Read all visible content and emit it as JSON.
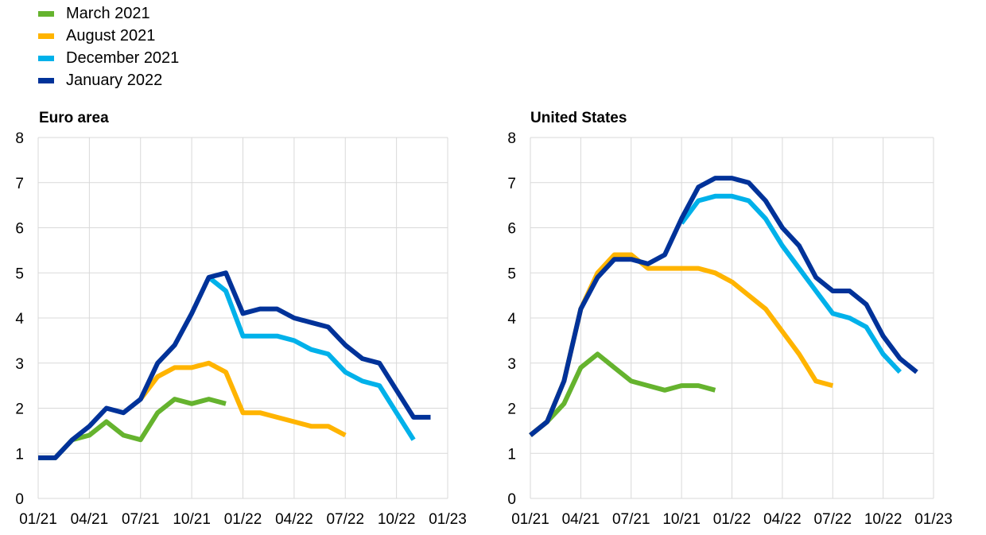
{
  "legend": {
    "items": [
      {
        "label": "March 2021",
        "color": "#65b32e"
      },
      {
        "label": "August 2021",
        "color": "#ffb400"
      },
      {
        "label": "December 2021",
        "color": "#00b1ea"
      },
      {
        "label": "January 2022",
        "color": "#003299"
      }
    ]
  },
  "chart_data": [
    {
      "type": "line",
      "title": "Euro area",
      "xlabel": "",
      "ylabel": "",
      "ylim": [
        0,
        8
      ],
      "yticks": [
        "0",
        "1",
        "2",
        "3",
        "4",
        "5",
        "6",
        "7",
        "8"
      ],
      "xlim": [
        "01/21",
        "01/23"
      ],
      "xticks": [
        "01/21",
        "04/21",
        "07/21",
        "10/21",
        "01/22",
        "04/22",
        "07/22",
        "10/22",
        "01/23"
      ],
      "grid": true,
      "series": [
        {
          "name": "March 2021",
          "color": "#65b32e",
          "x": [
            "01/21",
            "02/21",
            "03/21",
            "04/21",
            "05/21",
            "06/21",
            "07/21",
            "08/21",
            "09/21",
            "10/21",
            "11/21",
            "12/21"
          ],
          "values": [
            0.9,
            0.9,
            1.3,
            1.4,
            1.7,
            1.4,
            1.3,
            1.9,
            2.2,
            2.1,
            2.2,
            2.1
          ]
        },
        {
          "name": "August 2021",
          "color": "#ffb400",
          "x": [
            "07/21",
            "08/21",
            "09/21",
            "10/21",
            "11/21",
            "12/21",
            "01/22",
            "02/22",
            "03/22",
            "04/22",
            "05/22",
            "06/22",
            "07/22"
          ],
          "values": [
            2.2,
            2.7,
            2.9,
            2.9,
            3.0,
            2.8,
            1.9,
            1.9,
            1.8,
            1.7,
            1.6,
            1.6,
            1.4
          ]
        },
        {
          "name": "December 2021",
          "color": "#00b1ea",
          "x": [
            "11/21",
            "12/21",
            "01/22",
            "02/22",
            "03/22",
            "04/22",
            "05/22",
            "06/22",
            "07/22",
            "08/22",
            "09/22",
            "10/22",
            "11/22"
          ],
          "values": [
            4.9,
            4.6,
            3.6,
            3.6,
            3.6,
            3.5,
            3.3,
            3.2,
            2.8,
            2.6,
            2.5,
            1.9,
            1.3
          ]
        },
        {
          "name": "January 2022",
          "color": "#003299",
          "x": [
            "01/21",
            "02/21",
            "03/21",
            "04/21",
            "05/21",
            "06/21",
            "07/21",
            "08/21",
            "09/21",
            "10/21",
            "11/21",
            "12/21",
            "01/22",
            "02/22",
            "03/22",
            "04/22",
            "05/22",
            "06/22",
            "07/22",
            "08/22",
            "09/22",
            "10/22",
            "11/22",
            "12/22"
          ],
          "values": [
            0.9,
            0.9,
            1.3,
            1.6,
            2.0,
            1.9,
            2.2,
            3.0,
            3.4,
            4.1,
            4.9,
            5.0,
            4.1,
            4.2,
            4.2,
            4.0,
            3.9,
            3.8,
            3.4,
            3.1,
            3.0,
            2.4,
            1.8,
            1.8
          ]
        }
      ]
    },
    {
      "type": "line",
      "title": "United States",
      "xlabel": "",
      "ylabel": "",
      "ylim": [
        0,
        8
      ],
      "yticks": [
        "0",
        "1",
        "2",
        "3",
        "4",
        "5",
        "6",
        "7",
        "8"
      ],
      "xlim": [
        "01/21",
        "01/23"
      ],
      "xticks": [
        "01/21",
        "04/21",
        "07/21",
        "10/21",
        "01/22",
        "04/22",
        "07/22",
        "10/22",
        "01/23"
      ],
      "grid": true,
      "series": [
        {
          "name": "March 2021",
          "color": "#65b32e",
          "x": [
            "01/21",
            "02/21",
            "03/21",
            "04/21",
            "05/21",
            "06/21",
            "07/21",
            "08/21",
            "09/21",
            "10/21",
            "11/21",
            "12/21"
          ],
          "values": [
            1.4,
            1.7,
            2.1,
            2.9,
            3.2,
            2.9,
            2.6,
            2.5,
            2.4,
            2.5,
            2.5,
            2.4
          ]
        },
        {
          "name": "August 2021",
          "color": "#ffb400",
          "x": [
            "01/21",
            "02/21",
            "03/21",
            "04/21",
            "05/21",
            "06/21",
            "07/21",
            "08/21",
            "09/21",
            "10/21",
            "11/21",
            "12/21",
            "01/22",
            "02/22",
            "03/22",
            "04/22",
            "05/22",
            "06/22",
            "07/22"
          ],
          "values": [
            1.4,
            1.7,
            2.6,
            4.2,
            5.0,
            5.4,
            5.4,
            5.1,
            5.1,
            5.1,
            5.1,
            5.0,
            4.8,
            4.5,
            4.2,
            3.7,
            3.2,
            2.6,
            2.5
          ]
        },
        {
          "name": "December 2021",
          "color": "#00b1ea",
          "x": [
            "10/21",
            "11/21",
            "12/21",
            "01/22",
            "02/22",
            "03/22",
            "04/22",
            "05/22",
            "06/22",
            "07/22",
            "08/22",
            "09/22",
            "10/22",
            "11/22"
          ],
          "values": [
            6.1,
            6.6,
            6.7,
            6.7,
            6.6,
            6.2,
            5.6,
            5.1,
            4.6,
            4.1,
            4.0,
            3.8,
            3.2,
            2.8
          ]
        },
        {
          "name": "January 2022",
          "color": "#003299",
          "x": [
            "01/21",
            "02/21",
            "03/21",
            "04/21",
            "05/21",
            "06/21",
            "07/21",
            "08/21",
            "09/21",
            "10/21",
            "11/21",
            "12/21",
            "01/22",
            "02/22",
            "03/22",
            "04/22",
            "05/22",
            "06/22",
            "07/22",
            "08/22",
            "09/22",
            "10/22",
            "11/22",
            "12/22"
          ],
          "values": [
            1.4,
            1.7,
            2.6,
            4.2,
            4.9,
            5.3,
            5.3,
            5.2,
            5.4,
            6.2,
            6.9,
            7.1,
            7.1,
            7.0,
            6.6,
            6.0,
            5.6,
            4.9,
            4.6,
            4.6,
            4.3,
            3.6,
            3.1,
            2.8
          ]
        }
      ]
    }
  ]
}
